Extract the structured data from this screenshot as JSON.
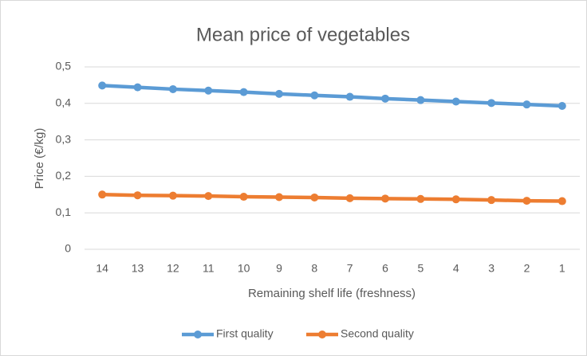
{
  "chart_data": {
    "type": "line",
    "title": "Mean price of vegetables",
    "x_label": "Remaining shelf life (freshness)",
    "y_label": "Price (€/kg)",
    "categories": [
      "14",
      "13",
      "12",
      "11",
      "10",
      "9",
      "8",
      "7",
      "6",
      "5",
      "4",
      "3",
      "2",
      "1"
    ],
    "series": [
      {
        "name": "First quality",
        "color": "#5b9bd5",
        "values": [
          0.449,
          0.444,
          0.439,
          0.435,
          0.431,
          0.426,
          0.422,
          0.418,
          0.413,
          0.409,
          0.405,
          0.401,
          0.397,
          0.393
        ]
      },
      {
        "name": "Second quality",
        "color": "#ed7d31",
        "values": [
          0.15,
          0.148,
          0.147,
          0.146,
          0.144,
          0.143,
          0.142,
          0.14,
          0.139,
          0.138,
          0.137,
          0.135,
          0.133,
          0.132
        ]
      }
    ],
    "ylim": [
      0,
      0.5
    ],
    "yticks": [
      0,
      {
        "value": 0.1,
        "label": "0,1"
      },
      {
        "value": 0.2,
        "label": "0,2"
      },
      {
        "value": 0.3,
        "label": "0,3"
      },
      {
        "value": 0.4,
        "label": "0,4"
      },
      {
        "value": 0.5,
        "label": "0,5"
      }
    ],
    "grid": true,
    "legend": "bottom"
  }
}
